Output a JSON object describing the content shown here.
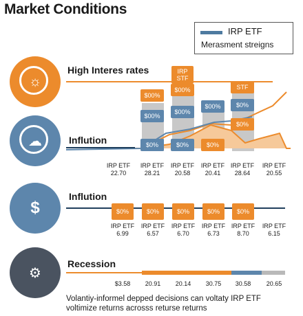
{
  "title": "Market Conditions",
  "legend": {
    "series": "IRP ETF",
    "subtitle": "Merasment streigns"
  },
  "rows": {
    "high_interest": {
      "label": "High Interes rates",
      "callout": "IRP\nSTF"
    },
    "inflation_chart": {
      "label": "Inflution"
    },
    "inflation_pills": {
      "label": "Inflution"
    },
    "recession": {
      "label": "Recession"
    }
  },
  "chart_pills": [
    {
      "top": "$00%",
      "mid": "$00%",
      "bottom": "$0%"
    },
    {
      "top": "$00%",
      "mid": "$00%",
      "bottom": "$0%"
    },
    {
      "top": "",
      "mid": "$00%",
      "bottom": "$0%"
    },
    {
      "top": "STF",
      "mid": "$0%",
      "bottom": "$0%"
    }
  ],
  "chart_labels": [
    {
      "name": "IRP ETF",
      "value": "22.70"
    },
    {
      "name": "IRP ETF",
      "value": "28.21"
    },
    {
      "name": "IRP ETF",
      "value": "20.58"
    },
    {
      "name": "IRP ETF",
      "value": "20.41"
    },
    {
      "name": "IRP ETF",
      "value": "28.64"
    },
    {
      "name": "IRP ETF",
      "value": "20.55"
    }
  ],
  "inflation_pills": [
    {
      "pill": "$0%",
      "name": "IRP ETF",
      "value": "6.99"
    },
    {
      "pill": "$0%",
      "name": "IRP ETF",
      "value": "6.57"
    },
    {
      "pill": "$0%",
      "name": "IRP ETF",
      "value": "6.70"
    },
    {
      "pill": "$0%",
      "name": "IRP ETF",
      "value": "6.73"
    },
    {
      "pill": "$0%",
      "name": "IRP ETF",
      "value": "8.70"
    },
    {
      "pill": "",
      "name": "IRP ETF",
      "value": "6.15"
    }
  ],
  "recession_values": [
    "$3.58",
    "20.91",
    "20.14",
    "30.75",
    "30.58",
    "20.65"
  ],
  "footer": {
    "line1": "Volantiy-informel depped decisions can voltaty IRP ETF",
    "line2": "voltimize returns acrosss returse returns"
  },
  "colors": {
    "orange": "#ec8b2c",
    "blue": "#5d86ac",
    "dark": "#4a5360",
    "line": "#1f3e5c"
  }
}
